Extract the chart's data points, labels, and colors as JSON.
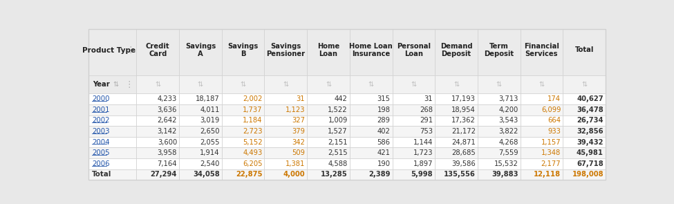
{
  "col_headers": [
    "Credit\nCard",
    "Savings\nA",
    "Savings\nB",
    "Savings\nPensioner",
    "Home\nLoan",
    "Home Loan\nInsurance",
    "Personal\nLoan",
    "Demand\nDeposit",
    "Term\nDeposit",
    "Financial\nServices",
    "Total"
  ],
  "row_headers": [
    "2000",
    "2001",
    "2002",
    "2003",
    "2004",
    "2005",
    "2006",
    "Total"
  ],
  "table_data": [
    [
      "4,233",
      "18,187",
      "2,002",
      "31",
      "442",
      "315",
      "31",
      "17,193",
      "3,713",
      "174",
      "40,627"
    ],
    [
      "3,636",
      "4,011",
      "1,737",
      "1,123",
      "1,522",
      "198",
      "268",
      "18,954",
      "4,200",
      "6,099",
      "36,478"
    ],
    [
      "2,642",
      "3,019",
      "1,184",
      "327",
      "1,009",
      "289",
      "291",
      "17,362",
      "3,543",
      "664",
      "26,734"
    ],
    [
      "3,142",
      "2,650",
      "2,723",
      "379",
      "1,527",
      "402",
      "753",
      "21,172",
      "3,822",
      "933",
      "32,856"
    ],
    [
      "3,600",
      "2,055",
      "5,152",
      "342",
      "2,151",
      "586",
      "1,144",
      "24,871",
      "4,268",
      "1,157",
      "39,432"
    ],
    [
      "3,958",
      "1,914",
      "4,493",
      "509",
      "2,515",
      "421",
      "1,723",
      "28,685",
      "7,559",
      "1,348",
      "45,981"
    ],
    [
      "7,164",
      "2,540",
      "6,205",
      "1,381",
      "4,588",
      "190",
      "1,897",
      "39,586",
      "15,532",
      "2,177",
      "67,718"
    ],
    [
      "27,294",
      "34,058",
      "22,875",
      "4,000",
      "13,285",
      "2,389",
      "5,998",
      "135,556",
      "39,883",
      "12,118",
      "198,008"
    ]
  ],
  "orange_cols": [
    2,
    3,
    9
  ],
  "special_orange_cells": [
    [
      1,
      3
    ],
    [
      2,
      3
    ],
    [
      6,
      3
    ],
    [
      1,
      9
    ],
    [
      6,
      9
    ]
  ],
  "header_bg": "#ebebeb",
  "subheader_bg": "#f2f2f2",
  "row_bg_even": "#ffffff",
  "row_bg_odd": "#f5f5f5",
  "border_color": "#d0d0d0",
  "text_color_dark": "#333333",
  "text_color_orange": "#cc7700",
  "text_color_blue_link": "#2255aa",
  "header_text_color": "#222222",
  "fig_bg": "#e8e8e8",
  "total_row_color": "#333333",
  "total_col_color": "#333333"
}
